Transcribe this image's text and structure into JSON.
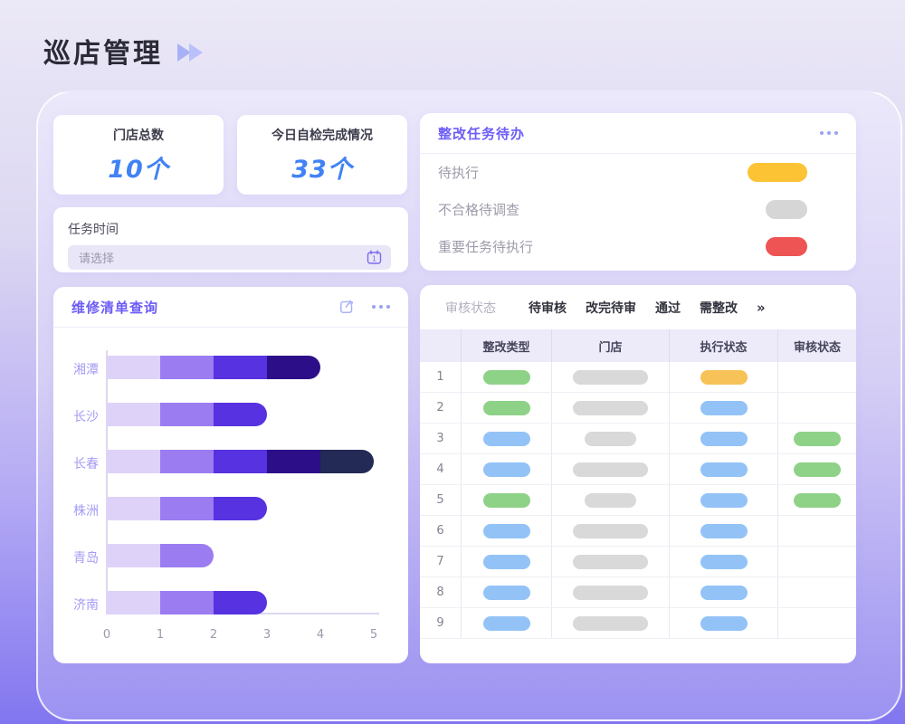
{
  "page": {
    "title": "巡店管理"
  },
  "stats": [
    {
      "label": "门店总数",
      "value": "10个"
    },
    {
      "label": "今日自检完成情况",
      "value": "33个"
    }
  ],
  "task_time": {
    "label": "任务时间",
    "placeholder": "请选择"
  },
  "repair_panel": {
    "title": "维修清单查询"
  },
  "todo_panel": {
    "title": "整改任务待办",
    "items": [
      {
        "label": "待执行",
        "color": "#fcc334",
        "pill_size": "large"
      },
      {
        "label": "不合格待调查",
        "color": "#d6d6d6",
        "pill_size": "small"
      },
      {
        "label": "重要任务待执行",
        "color": "#ee5454",
        "pill_size": "small"
      }
    ]
  },
  "audit_panel": {
    "filter_label": "审核状态",
    "tabs": [
      "待审核",
      "改完待审",
      "通过",
      "需整改"
    ],
    "more_indicator": "»",
    "table": {
      "columns": [
        "",
        "整改类型",
        "门店",
        "执行状态",
        "审核状态"
      ],
      "pill_colors": {
        "green": "#8ed287",
        "blue": "#93c3f6",
        "orange": "#f7c257",
        "gray": "#d9d9d9"
      },
      "rows": [
        {
          "no": "1",
          "type": "green",
          "store_size": "long",
          "exec": "orange",
          "audit": ""
        },
        {
          "no": "2",
          "type": "green",
          "store_size": "long",
          "exec": "blue",
          "audit": ""
        },
        {
          "no": "3",
          "type": "blue",
          "store_size": "short",
          "exec": "blue",
          "audit": "green"
        },
        {
          "no": "4",
          "type": "blue",
          "store_size": "long",
          "exec": "blue",
          "audit": "green"
        },
        {
          "no": "5",
          "type": "green",
          "store_size": "short",
          "exec": "blue",
          "audit": "green"
        },
        {
          "no": "6",
          "type": "blue",
          "store_size": "long",
          "exec": "blue",
          "audit": ""
        },
        {
          "no": "7",
          "type": "blue",
          "store_size": "long",
          "exec": "blue",
          "audit": ""
        },
        {
          "no": "8",
          "type": "blue",
          "store_size": "long",
          "exec": "blue",
          "audit": ""
        },
        {
          "no": "9",
          "type": "blue",
          "store_size": "long",
          "exec": "blue",
          "audit": ""
        }
      ]
    }
  },
  "chart_data": {
    "type": "bar",
    "orientation": "horizontal",
    "stacked": true,
    "title": "维修清单查询",
    "categories": [
      "湘潭",
      "长沙",
      "长春",
      "株洲",
      "青岛",
      "济南"
    ],
    "series": [
      {
        "name": "segment-1",
        "color": "#ded2f8",
        "values": [
          1,
          1,
          1,
          1,
          1,
          1
        ]
      },
      {
        "name": "segment-2",
        "color": "#9b7df1",
        "values": [
          1,
          1,
          1,
          1,
          1,
          1
        ]
      },
      {
        "name": "segment-3",
        "color": "#5632e0",
        "values": [
          1,
          1,
          1,
          1,
          0,
          1
        ]
      },
      {
        "name": "segment-4",
        "color": "#2c0f88",
        "values": [
          1,
          0,
          1,
          0,
          0,
          0
        ]
      },
      {
        "name": "segment-5",
        "color": "#232a55",
        "values": [
          0,
          0,
          1,
          0,
          0,
          0
        ]
      }
    ],
    "totals": [
      4,
      3,
      5,
      3,
      2,
      3
    ],
    "xlim": [
      0,
      5
    ],
    "xticks": [
      "0",
      "1",
      "2",
      "3",
      "4",
      "5"
    ],
    "grid": false,
    "legend": false
  }
}
